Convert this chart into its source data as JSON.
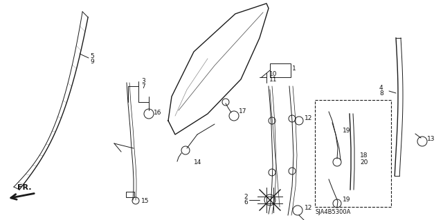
{
  "bg_color": "#ffffff",
  "fig_width": 6.4,
  "fig_height": 3.19,
  "dpi": 100,
  "line_color": "#1a1a1a",
  "label_fontsize": 6.5,
  "label_color": "#111111"
}
